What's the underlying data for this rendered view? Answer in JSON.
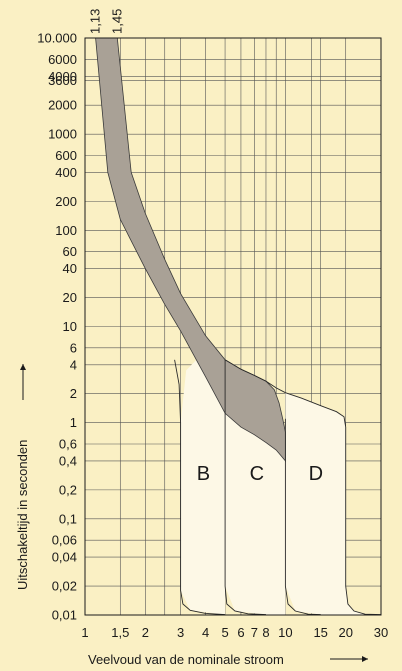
{
  "chart_data": {
    "type": "area",
    "title": "",
    "xlabel": "Veelvoud van de nominale stroom",
    "ylabel": "Uitschakeltijd in seconden",
    "xscale": "log",
    "yscale": "log",
    "xlim": [
      1,
      30
    ],
    "ylim": [
      0.01,
      10000
    ],
    "grid": true,
    "x_ticks": [
      {
        "v": 1,
        "label": "1"
      },
      {
        "v": 1.5,
        "label": "1,5"
      },
      {
        "v": 2,
        "label": "2"
      },
      {
        "v": 3,
        "label": "3"
      },
      {
        "v": 4,
        "label": "4"
      },
      {
        "v": 5,
        "label": "5"
      },
      {
        "v": 6,
        "label": "6"
      },
      {
        "v": 7,
        "label": "7"
      },
      {
        "v": 8,
        "label": "8"
      },
      {
        "v": 10,
        "label": "10"
      },
      {
        "v": 15,
        "label": "15"
      },
      {
        "v": 20,
        "label": "20"
      },
      {
        "v": 30,
        "label": "30"
      }
    ],
    "x_grid_extra": [
      2.5,
      9,
      13.5
    ],
    "y_ticks": [
      {
        "v": 10000,
        "label": "10.000"
      },
      {
        "v": 6000,
        "label": "6000"
      },
      {
        "v": 4000,
        "label": "4000"
      },
      {
        "v": 3600,
        "label": "3600"
      },
      {
        "v": 2000,
        "label": "2000"
      },
      {
        "v": 1000,
        "label": "1000"
      },
      {
        "v": 600,
        "label": "600"
      },
      {
        "v": 400,
        "label": "400"
      },
      {
        "v": 200,
        "label": "200"
      },
      {
        "v": 100,
        "label": "100"
      },
      {
        "v": 60,
        "label": "60"
      },
      {
        "v": 40,
        "label": "40"
      },
      {
        "v": 20,
        "label": "20"
      },
      {
        "v": 10,
        "label": "10"
      },
      {
        "v": 6,
        "label": "6"
      },
      {
        "v": 4,
        "label": "4"
      },
      {
        "v": 2,
        "label": "2"
      },
      {
        "v": 1,
        "label": "1"
      },
      {
        "v": 0.6,
        "label": "0,6"
      },
      {
        "v": 0.4,
        "label": "0,4"
      },
      {
        "v": 0.2,
        "label": "0,2"
      },
      {
        "v": 0.1,
        "label": "0,1"
      },
      {
        "v": 0.06,
        "label": "0,06"
      },
      {
        "v": 0.04,
        "label": "0,04"
      },
      {
        "v": 0.02,
        "label": "0,02"
      },
      {
        "v": 0.01,
        "label": "0,01"
      }
    ],
    "top_labels": [
      {
        "v": 1.13,
        "label": "1,13"
      },
      {
        "v": 1.45,
        "label": "1,45"
      }
    ],
    "band": {
      "name": "thermal trip band",
      "color": "#a9a196",
      "upper": [
        [
          1.45,
          10000
        ],
        [
          1.7,
          400
        ],
        [
          2,
          150
        ],
        [
          2.5,
          50
        ],
        [
          3,
          22
        ],
        [
          4,
          8
        ],
        [
          5,
          4.5
        ],
        [
          6,
          3.6
        ],
        [
          7,
          3.1
        ],
        [
          8,
          2.7
        ],
        [
          8.8,
          2.2
        ],
        [
          9.3,
          1.6
        ],
        [
          9.7,
          1.1
        ],
        [
          10,
          0.8
        ],
        [
          10,
          0.4
        ]
      ],
      "lower": [
        [
          1.13,
          10000
        ],
        [
          1.3,
          400
        ],
        [
          1.5,
          130
        ],
        [
          2,
          40
        ],
        [
          2.5,
          17
        ],
        [
          3,
          9
        ],
        [
          4,
          3
        ],
        [
          5,
          1.25
        ],
        [
          6,
          0.9
        ],
        [
          7,
          0.75
        ],
        [
          8,
          0.62
        ],
        [
          9,
          0.52
        ],
        [
          10,
          0.4
        ]
      ]
    },
    "regions": [
      {
        "label": "B",
        "x": 3.9,
        "y": 0.3,
        "left_x": 3,
        "top_y": 3.5
      },
      {
        "label": "C",
        "x": 7.2,
        "y": 0.3,
        "left_x": 5,
        "top_y": 4.5
      },
      {
        "label": "D",
        "x": 14.2,
        "y": 0.3,
        "left_x": 10,
        "top_y": 1.4
      }
    ],
    "trip_curves": [
      {
        "name": "B",
        "points": [
          [
            2.8,
            4.5
          ],
          [
            2.95,
            2.5
          ],
          [
            3,
            1
          ],
          [
            3,
            0.018
          ],
          [
            3.08,
            0.013
          ],
          [
            3.35,
            0.0112
          ],
          [
            4,
            0.0104
          ],
          [
            5,
            0.0101
          ]
        ]
      },
      {
        "name": "C",
        "points": [
          [
            5,
            4.5
          ],
          [
            5,
            0.02
          ],
          [
            5.1,
            0.013
          ],
          [
            5.6,
            0.011
          ],
          [
            6.5,
            0.0103
          ],
          [
            8,
            0.0101
          ]
        ]
      },
      {
        "name": "D",
        "points": [
          [
            10,
            1.1
          ],
          [
            10,
            0.02
          ],
          [
            10.3,
            0.013
          ],
          [
            11.2,
            0.011
          ],
          [
            13,
            0.0102
          ],
          [
            15,
            0.0101
          ]
        ]
      },
      {
        "name": "D-envelope",
        "points": [
          [
            5,
            4.5
          ],
          [
            6,
            3.6
          ],
          [
            7,
            3.1
          ],
          [
            8,
            2.7
          ],
          [
            9,
            2.3
          ],
          [
            10,
            2.05
          ],
          [
            12,
            1.8
          ],
          [
            15,
            1.5
          ],
          [
            18,
            1.3
          ],
          [
            19.6,
            1.15
          ],
          [
            20,
            0.9
          ],
          [
            20,
            0.02
          ],
          [
            20.5,
            0.013
          ],
          [
            22,
            0.011
          ],
          [
            25,
            0.0102
          ],
          [
            30,
            0.0101
          ]
        ]
      }
    ]
  }
}
